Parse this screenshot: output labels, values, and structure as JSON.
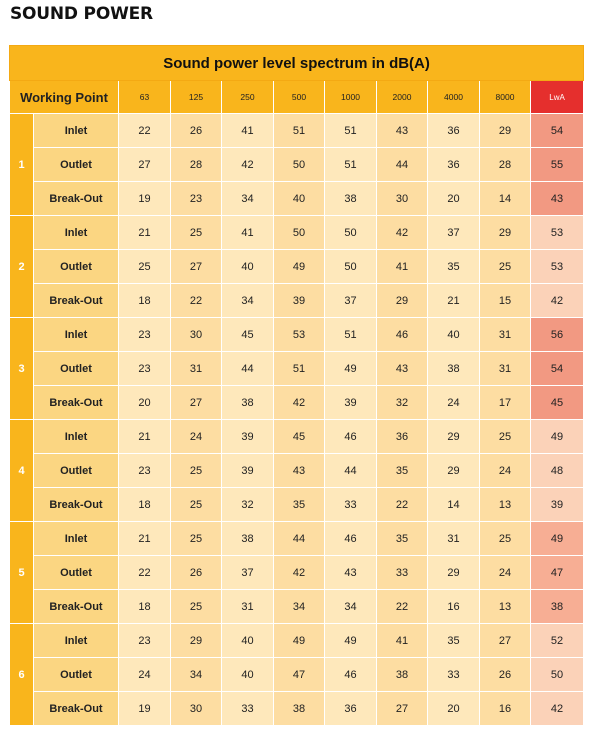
{
  "page_title": "SOUND POWER",
  "table": {
    "caption": "Sound power level spectrum in dB(A)",
    "working_point_header": "Working Point",
    "frequencies": [
      "63",
      "125",
      "250",
      "500",
      "1000",
      "2000",
      "4000",
      "8000"
    ],
    "lwa_header": "LwA",
    "colors": {
      "header": "#f9b51c",
      "type_cell": "#fbd682",
      "value_light": "#fee8bb",
      "value_dark": "#fddda2",
      "lwa_header": "#e52f2d",
      "lwa_light": "#fbd2b8",
      "lwa_mid": "#f7ae94",
      "lwa_strong": "#f29982"
    },
    "groups": [
      {
        "point": "1",
        "rows": [
          {
            "type": "Inlet",
            "values": [
              "22",
              "26",
              "41",
              "51",
              "51",
              "43",
              "36",
              "29"
            ],
            "lwa": "54",
            "lwa_shade": "strong"
          },
          {
            "type": "Outlet",
            "values": [
              "27",
              "28",
              "42",
              "50",
              "51",
              "44",
              "36",
              "28"
            ],
            "lwa": "55",
            "lwa_shade": "strong"
          },
          {
            "type": "Break-Out",
            "values": [
              "19",
              "23",
              "34",
              "40",
              "38",
              "30",
              "20",
              "14"
            ],
            "lwa": "43",
            "lwa_shade": "strong"
          }
        ]
      },
      {
        "point": "2",
        "rows": [
          {
            "type": "Inlet",
            "values": [
              "21",
              "25",
              "41",
              "50",
              "50",
              "42",
              "37",
              "29"
            ],
            "lwa": "53",
            "lwa_shade": "light"
          },
          {
            "type": "Outlet",
            "values": [
              "25",
              "27",
              "40",
              "49",
              "50",
              "41",
              "35",
              "25"
            ],
            "lwa": "53",
            "lwa_shade": "light"
          },
          {
            "type": "Break-Out",
            "values": [
              "18",
              "22",
              "34",
              "39",
              "37",
              "29",
              "21",
              "15"
            ],
            "lwa": "42",
            "lwa_shade": "light"
          }
        ]
      },
      {
        "point": "3",
        "rows": [
          {
            "type": "Inlet",
            "values": [
              "23",
              "30",
              "45",
              "53",
              "51",
              "46",
              "40",
              "31"
            ],
            "lwa": "56",
            "lwa_shade": "strong"
          },
          {
            "type": "Outlet",
            "values": [
              "23",
              "31",
              "44",
              "51",
              "49",
              "43",
              "38",
              "31"
            ],
            "lwa": "54",
            "lwa_shade": "strong"
          },
          {
            "type": "Break-Out",
            "values": [
              "20",
              "27",
              "38",
              "42",
              "39",
              "32",
              "24",
              "17"
            ],
            "lwa": "45",
            "lwa_shade": "strong"
          }
        ]
      },
      {
        "point": "4",
        "rows": [
          {
            "type": "Inlet",
            "values": [
              "21",
              "24",
              "39",
              "45",
              "46",
              "36",
              "29",
              "25"
            ],
            "lwa": "49",
            "lwa_shade": "light"
          },
          {
            "type": "Outlet",
            "values": [
              "23",
              "25",
              "39",
              "43",
              "44",
              "35",
              "29",
              "24"
            ],
            "lwa": "48",
            "lwa_shade": "light"
          },
          {
            "type": "Break-Out",
            "values": [
              "18",
              "25",
              "32",
              "35",
              "33",
              "22",
              "14",
              "13"
            ],
            "lwa": "39",
            "lwa_shade": "light"
          }
        ]
      },
      {
        "point": "5",
        "rows": [
          {
            "type": "Inlet",
            "values": [
              "21",
              "25",
              "38",
              "44",
              "46",
              "35",
              "31",
              "25"
            ],
            "lwa": "49",
            "lwa_shade": "mid"
          },
          {
            "type": "Outlet",
            "values": [
              "22",
              "26",
              "37",
              "42",
              "43",
              "33",
              "29",
              "24"
            ],
            "lwa": "47",
            "lwa_shade": "mid"
          },
          {
            "type": "Break-Out",
            "values": [
              "18",
              "25",
              "31",
              "34",
              "34",
              "22",
              "16",
              "13"
            ],
            "lwa": "38",
            "lwa_shade": "mid"
          }
        ]
      },
      {
        "point": "6",
        "rows": [
          {
            "type": "Inlet",
            "values": [
              "23",
              "29",
              "40",
              "49",
              "49",
              "41",
              "35",
              "27"
            ],
            "lwa": "52",
            "lwa_shade": "light"
          },
          {
            "type": "Outlet",
            "values": [
              "24",
              "34",
              "40",
              "47",
              "46",
              "38",
              "33",
              "26"
            ],
            "lwa": "50",
            "lwa_shade": "light"
          },
          {
            "type": "Break-Out",
            "values": [
              "19",
              "30",
              "33",
              "38",
              "36",
              "27",
              "20",
              "16"
            ],
            "lwa": "42",
            "lwa_shade": "light"
          }
        ]
      }
    ]
  }
}
